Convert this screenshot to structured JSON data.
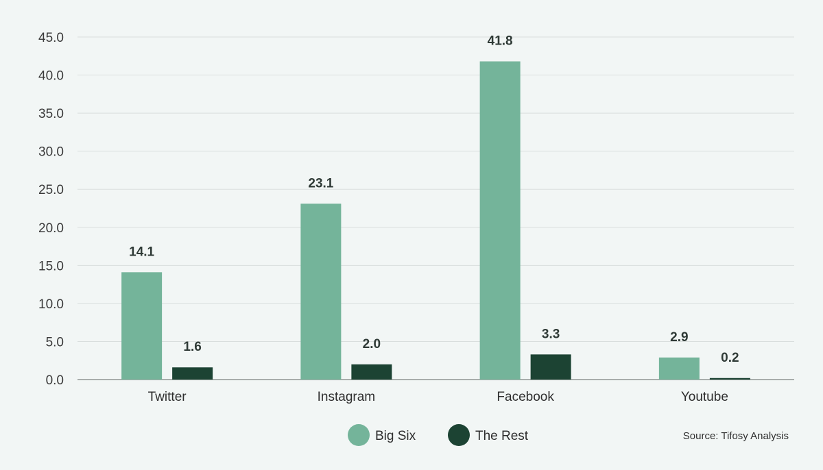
{
  "chart_data": {
    "type": "bar",
    "categories": [
      "Twitter",
      "Instagram",
      "Facebook",
      "Youtube"
    ],
    "series": [
      {
        "name": "Big Six",
        "values": [
          14.1,
          23.1,
          41.8,
          2.9
        ],
        "color": "#74b49a"
      },
      {
        "name": "The Rest",
        "values": [
          1.6,
          2.0,
          3.3,
          0.2
        ],
        "color": "#1c4333"
      }
    ],
    "yticks": [
      "0.0",
      "5.0",
      "10.0",
      "15.0",
      "20.0",
      "25.0",
      "30.0",
      "35.0",
      "40.0",
      "45.0"
    ],
    "ylim": [
      0,
      45
    ],
    "grid": true,
    "legend": "bottom-center",
    "source": "Source: Tifosy Analysis"
  }
}
